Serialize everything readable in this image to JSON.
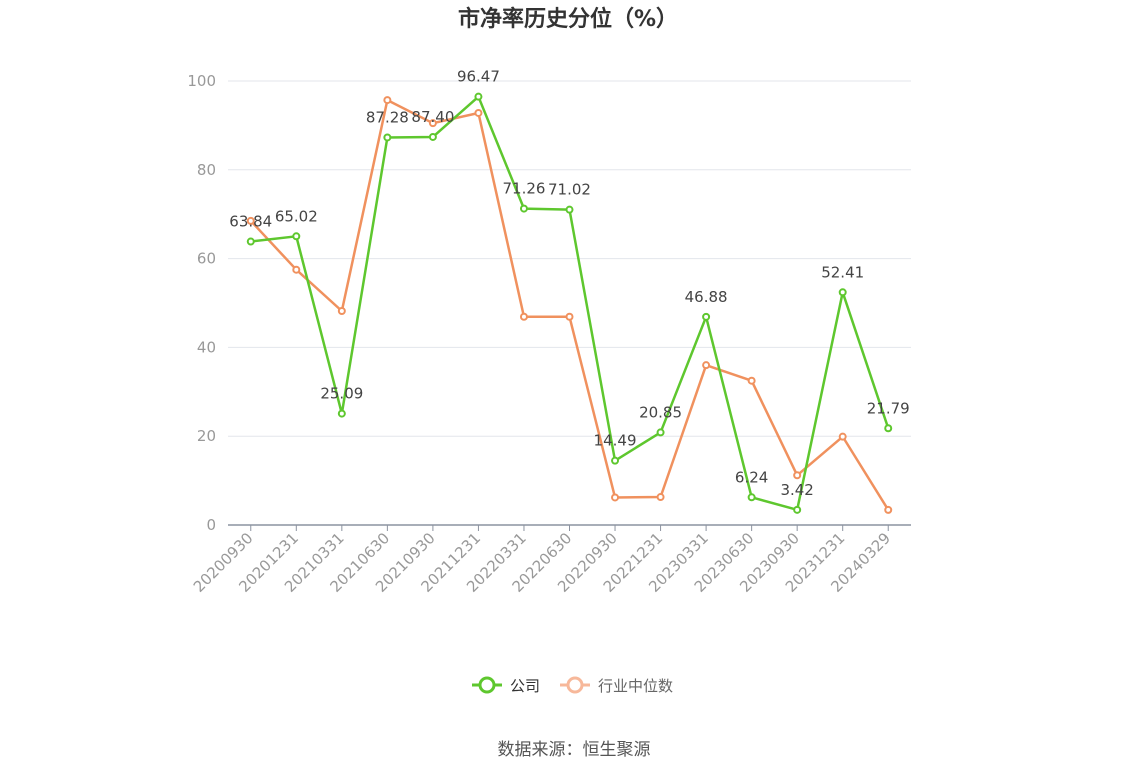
{
  "chart_data": {
    "type": "line",
    "title": "市净率历史分位（%）",
    "x": [
      "20200930",
      "20201231",
      "20210331",
      "20210630",
      "20210930",
      "20211231",
      "20220331",
      "20220630",
      "20220930",
      "20221231",
      "20230331",
      "20230630",
      "20230930",
      "20231231",
      "20240329"
    ],
    "y_ticks": [
      "0",
      "20",
      "40",
      "60",
      "80",
      "100"
    ],
    "ylim": [
      0,
      100
    ],
    "grid": true,
    "legend_position": "bottom",
    "series": [
      {
        "name": "公司",
        "color": "#5ec72e",
        "values": [
          63.84,
          65.02,
          25.09,
          87.28,
          87.4,
          96.47,
          71.26,
          71.02,
          14.49,
          20.85,
          46.88,
          6.24,
          3.42,
          52.41,
          21.79
        ],
        "labels": [
          "63.84",
          "65.02",
          "25.09",
          "87.28",
          "87.40",
          "96.47",
          "71.26",
          "71.02",
          "14.49",
          "20.85",
          "46.88",
          "6.24",
          "3.42",
          "52.41",
          "21.79"
        ]
      },
      {
        "name": "行业中位数",
        "color": "#f0915e",
        "legend_color": "#f7b89a",
        "values": [
          68.5,
          57.5,
          48.2,
          95.7,
          90.5,
          92.8,
          46.9,
          46.9,
          6.2,
          6.3,
          36.0,
          32.5,
          11.2,
          19.9,
          3.4
        ]
      }
    ]
  },
  "footer": {
    "source": "数据来源：恒生聚源"
  }
}
